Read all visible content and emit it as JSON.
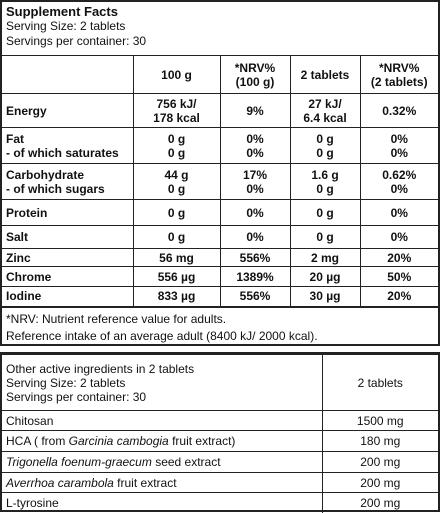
{
  "header": {
    "title": "Supplement Facts",
    "lines": [
      "Serving Size: 2 tablets",
      "Servings per container: 30"
    ]
  },
  "nutrition_table": {
    "columns": [
      [
        "100 g"
      ],
      [
        "*NRV%",
        "(100 g)"
      ],
      [
        "2 tablets"
      ],
      [
        "*NRV%",
        "(2 tablets)"
      ]
    ],
    "rows": [
      {
        "label": [
          "Energy"
        ],
        "cells": [
          [
            "756 kJ/",
            "178 kcal"
          ],
          [
            "9%"
          ],
          [
            "27 kJ/",
            "6.4 kcal"
          ],
          [
            "0.32%"
          ]
        ]
      },
      {
        "label": [
          "Fat",
          "- of which saturates"
        ],
        "cells": [
          [
            "0 g",
            "0 g"
          ],
          [
            "0%",
            "0%"
          ],
          [
            "0 g",
            "0 g"
          ],
          [
            "0%",
            "0%"
          ]
        ]
      },
      {
        "label": [
          "Carbohydrate",
          "- of which sugars"
        ],
        "cells": [
          [
            "44 g",
            "0 g"
          ],
          [
            "17%",
            "0%"
          ],
          [
            "1.6 g",
            "0 g"
          ],
          [
            "0.62%",
            "0%"
          ]
        ]
      },
      {
        "label": [
          "Protein"
        ],
        "cells": [
          [
            "0 g"
          ],
          [
            "0%"
          ],
          [
            "0 g"
          ],
          [
            "0%"
          ]
        ]
      },
      {
        "label": [
          "Salt"
        ],
        "cells": [
          [
            "0 g"
          ],
          [
            "0%"
          ],
          [
            "0 g"
          ],
          [
            "0%"
          ]
        ]
      },
      {
        "label": [
          "Zinc"
        ],
        "cells": [
          [
            "56 mg"
          ],
          [
            "556%"
          ],
          [
            "2 mg"
          ],
          [
            "20%"
          ]
        ]
      },
      {
        "label": [
          "Chrome"
        ],
        "cells": [
          [
            "556 µg"
          ],
          [
            "1389%"
          ],
          [
            "20 µg"
          ],
          [
            "50%"
          ]
        ]
      },
      {
        "label": [
          "Iodine"
        ],
        "cells": [
          [
            "833 µg"
          ],
          [
            "556%"
          ],
          [
            "30 µg"
          ],
          [
            "20%"
          ]
        ]
      }
    ]
  },
  "footnotes": [
    "*NRV: Nutrient reference value for adults.",
    "Reference intake of an average adult (8400 kJ/ 2000 kcal)."
  ],
  "ingredients_table": {
    "header": {
      "lines": [
        "Other active ingredients in 2 tablets",
        "Serving Size: 2 tablets",
        "Servings per container: 30"
      ],
      "amount": "2 tablets"
    },
    "rows": [
      {
        "name": [
          {
            "text": "Chitosan"
          }
        ],
        "amount": "1500 mg"
      },
      {
        "name": [
          {
            "text": "HCA ( from "
          },
          {
            "text": "Garcinia cambogia",
            "italic": true
          },
          {
            "text": " fruit extract)"
          }
        ],
        "amount": "180 mg"
      },
      {
        "name": [
          {
            "text": "Trigonella foenum-graecum",
            "italic": true
          },
          {
            "text": " seed extract"
          }
        ],
        "amount": "200 mg"
      },
      {
        "name": [
          {
            "text": "Averrhoa carambola",
            "italic": true
          },
          {
            "text": " fruit extract"
          }
        ],
        "amount": "200 mg"
      },
      {
        "name": [
          {
            "text": "L-tyrosine"
          }
        ],
        "amount": "200 mg"
      }
    ]
  }
}
